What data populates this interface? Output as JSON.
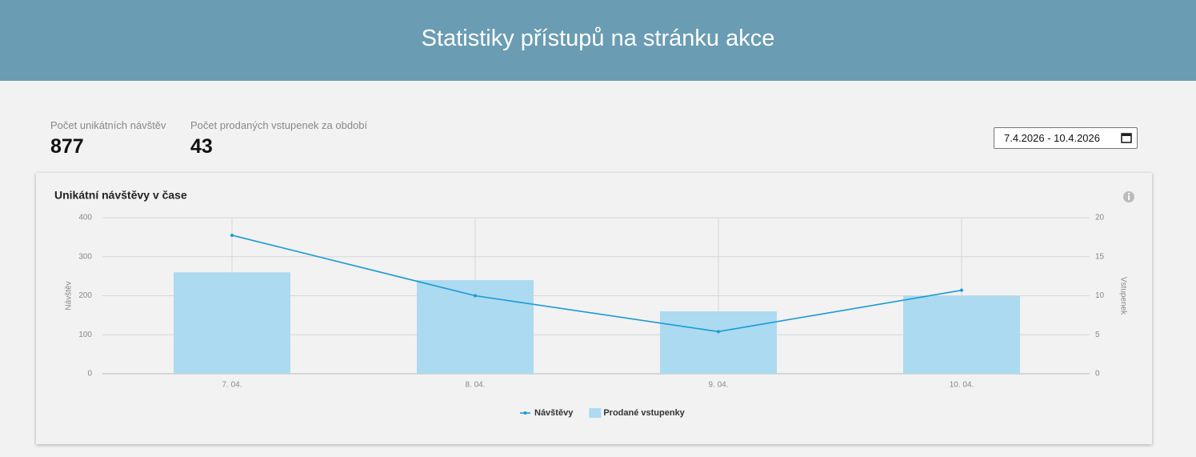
{
  "header": {
    "title": "Statistiky přístupů na stránku akce"
  },
  "stats": [
    {
      "label": "Počet unikátních návštěv",
      "value": 877
    },
    {
      "label": "Počet prodaných vstupenek za období",
      "value": 43
    }
  ],
  "date_range": "7.4.2026 - 10.4.2026",
  "chart_data": {
    "type": "combo",
    "title": "Unikátní návštěvy v čase",
    "categories": [
      "7. 04.",
      "8. 04.",
      "9. 04.",
      "10. 04."
    ],
    "series": [
      {
        "name": "Návštěvy",
        "type": "line",
        "color": "#1a9ad6",
        "values": [
          355,
          200,
          108,
          214
        ]
      },
      {
        "name": "Prodané vstupenky",
        "type": "bar",
        "axis": "y2",
        "color": "#acdaf0",
        "values": [
          13,
          12,
          8,
          10
        ]
      }
    ],
    "ylabel": "Návštěv",
    "y2label": "Vstupenek",
    "ylim": [
      0,
      400
    ],
    "yticks": [
      0,
      100,
      200,
      300,
      400
    ],
    "y2lim": [
      0,
      20
    ],
    "y2ticks": [
      0,
      5,
      10,
      15,
      20
    ],
    "grid": true
  }
}
